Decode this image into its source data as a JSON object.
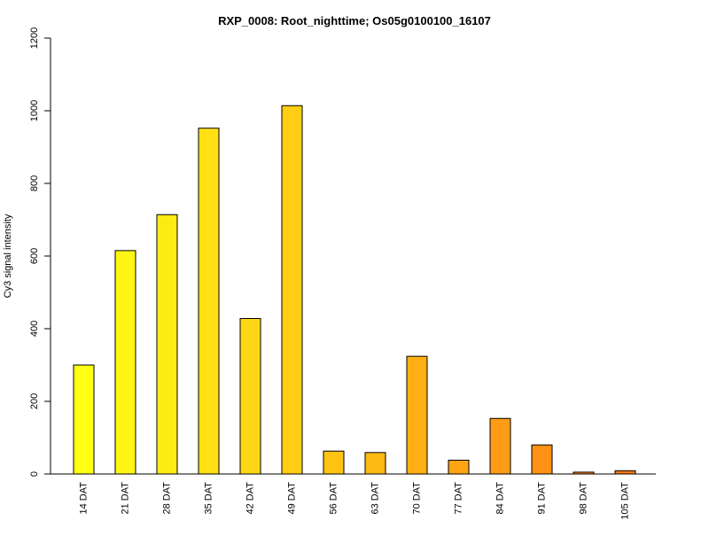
{
  "chart_data": {
    "type": "bar",
    "title": "RXP_0008: Root_nighttime; Os05g0100100_16107",
    "xlabel": "",
    "ylabel": "Cy3 signal intensity",
    "ylim": [
      0,
      1200
    ],
    "yticks": [
      0,
      200,
      400,
      600,
      800,
      1000,
      1200
    ],
    "categories": [
      "14 DAT",
      "21 DAT",
      "28 DAT",
      "35 DAT",
      "42 DAT",
      "49 DAT",
      "56 DAT",
      "63 DAT",
      "70 DAT",
      "77 DAT",
      "84 DAT",
      "91 DAT",
      "98 DAT",
      "105 DAT"
    ],
    "values": [
      300,
      615,
      714,
      952,
      428,
      1014,
      63,
      59,
      324,
      38,
      153,
      80,
      5,
      9
    ],
    "colors": [
      "#FFFF14",
      "#FFF514",
      "#FFEB14",
      "#FFE114",
      "#FFD714",
      "#FFCD14",
      "#FFC314",
      "#FFB914",
      "#FFAF14",
      "#FFA514",
      "#FF9B14",
      "#FF9114",
      "#FF8714",
      "#FF7D14"
    ],
    "grid": false,
    "legend": "none"
  }
}
